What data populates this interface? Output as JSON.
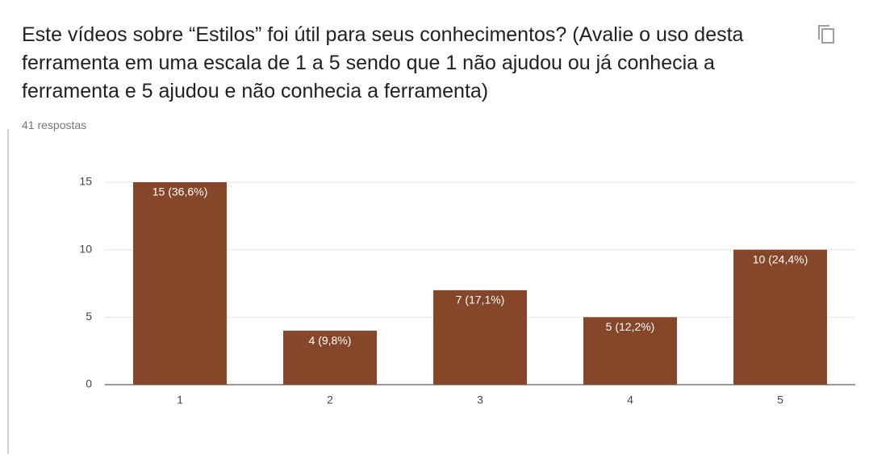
{
  "chart_data": {
    "type": "bar",
    "title": "Este vídeos sobre “Estilos” foi útil para seus conhecimentos? (Avalie o uso desta ferramenta em uma escala de 1 a 5 sendo que 1 não ajudou ou já conhecia a ferramenta e 5 ajudou e não conhecia a ferramenta)",
    "subtitle": "41 respostas",
    "categories": [
      "1",
      "2",
      "3",
      "4",
      "5"
    ],
    "values": [
      15,
      4,
      7,
      5,
      10
    ],
    "value_labels": [
      "15 (36,6%)",
      "4 (9,8%)",
      "7 (17,1%)",
      "5 (12,2%)",
      "10 (24,4%)"
    ],
    "color": "#85462a",
    "ylim": [
      0,
      15
    ],
    "yticks": [
      0,
      5,
      10,
      15
    ],
    "grid": true
  }
}
